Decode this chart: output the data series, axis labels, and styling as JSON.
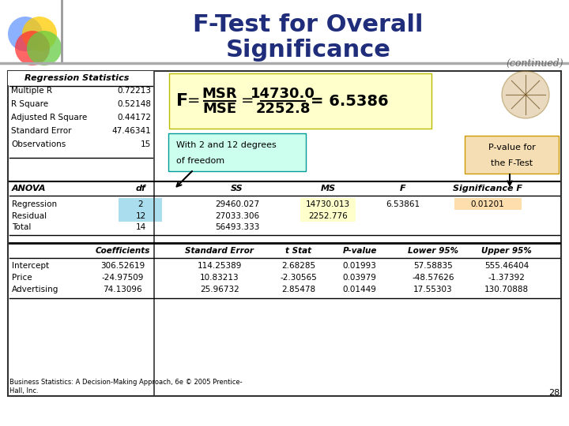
{
  "title_line1": "F-Test for Overall",
  "title_line2": "Significance",
  "continued_text": "(continued)",
  "title_color": "#1f2d7b",
  "regression_stats_header": "Regression Statistics",
  "regression_stats": [
    [
      "Multiple R",
      "0.72213"
    ],
    [
      "R Square",
      "0.52148"
    ],
    [
      "Adjusted R Square",
      "0.44172"
    ],
    [
      "Standard Error",
      "47.46341"
    ],
    [
      "Observations",
      "15"
    ]
  ],
  "formula_box_color": "#ffffcc",
  "annotation1_text1": "With 2 and 12 degrees",
  "annotation1_text2": "of freedom",
  "annotation1_bg": "#ccffee",
  "annotation2_text1": "P-value for",
  "annotation2_text2": "the F-Test",
  "annotation2_bg": "#f5deb3",
  "anova_regression_bg": "#aaddee",
  "anova_ms_highlight": "#ffffcc",
  "anova_sig_highlight": "#ffdead",
  "anova_rows": [
    [
      "Regression",
      "2",
      "29460.027",
      "14730.013",
      "6.53861",
      "0.01201"
    ],
    [
      "Residual",
      "12",
      "27033.306",
      "2252.776",
      "",
      ""
    ],
    [
      "Total",
      "14",
      "56493.333",
      "",
      "",
      ""
    ]
  ],
  "coeff_rows": [
    [
      "Intercept",
      "306.52619",
      "114.25389",
      "2.68285",
      "0.01993",
      "57.58835",
      "555.46404"
    ],
    [
      "Price",
      "-24.97509",
      "10.83213",
      "-2.30565",
      "0.03979",
      "-48.57626",
      "-1.37392"
    ],
    [
      "Advertising",
      "74.13096",
      "25.96732",
      "2.85478",
      "0.01449",
      "17.55303",
      "130.70888"
    ]
  ],
  "footer_text": "Business Statistics: A Decision-Making Approach, 6e © 2005 Prentice-\nHall, Inc.",
  "page_number": "28"
}
